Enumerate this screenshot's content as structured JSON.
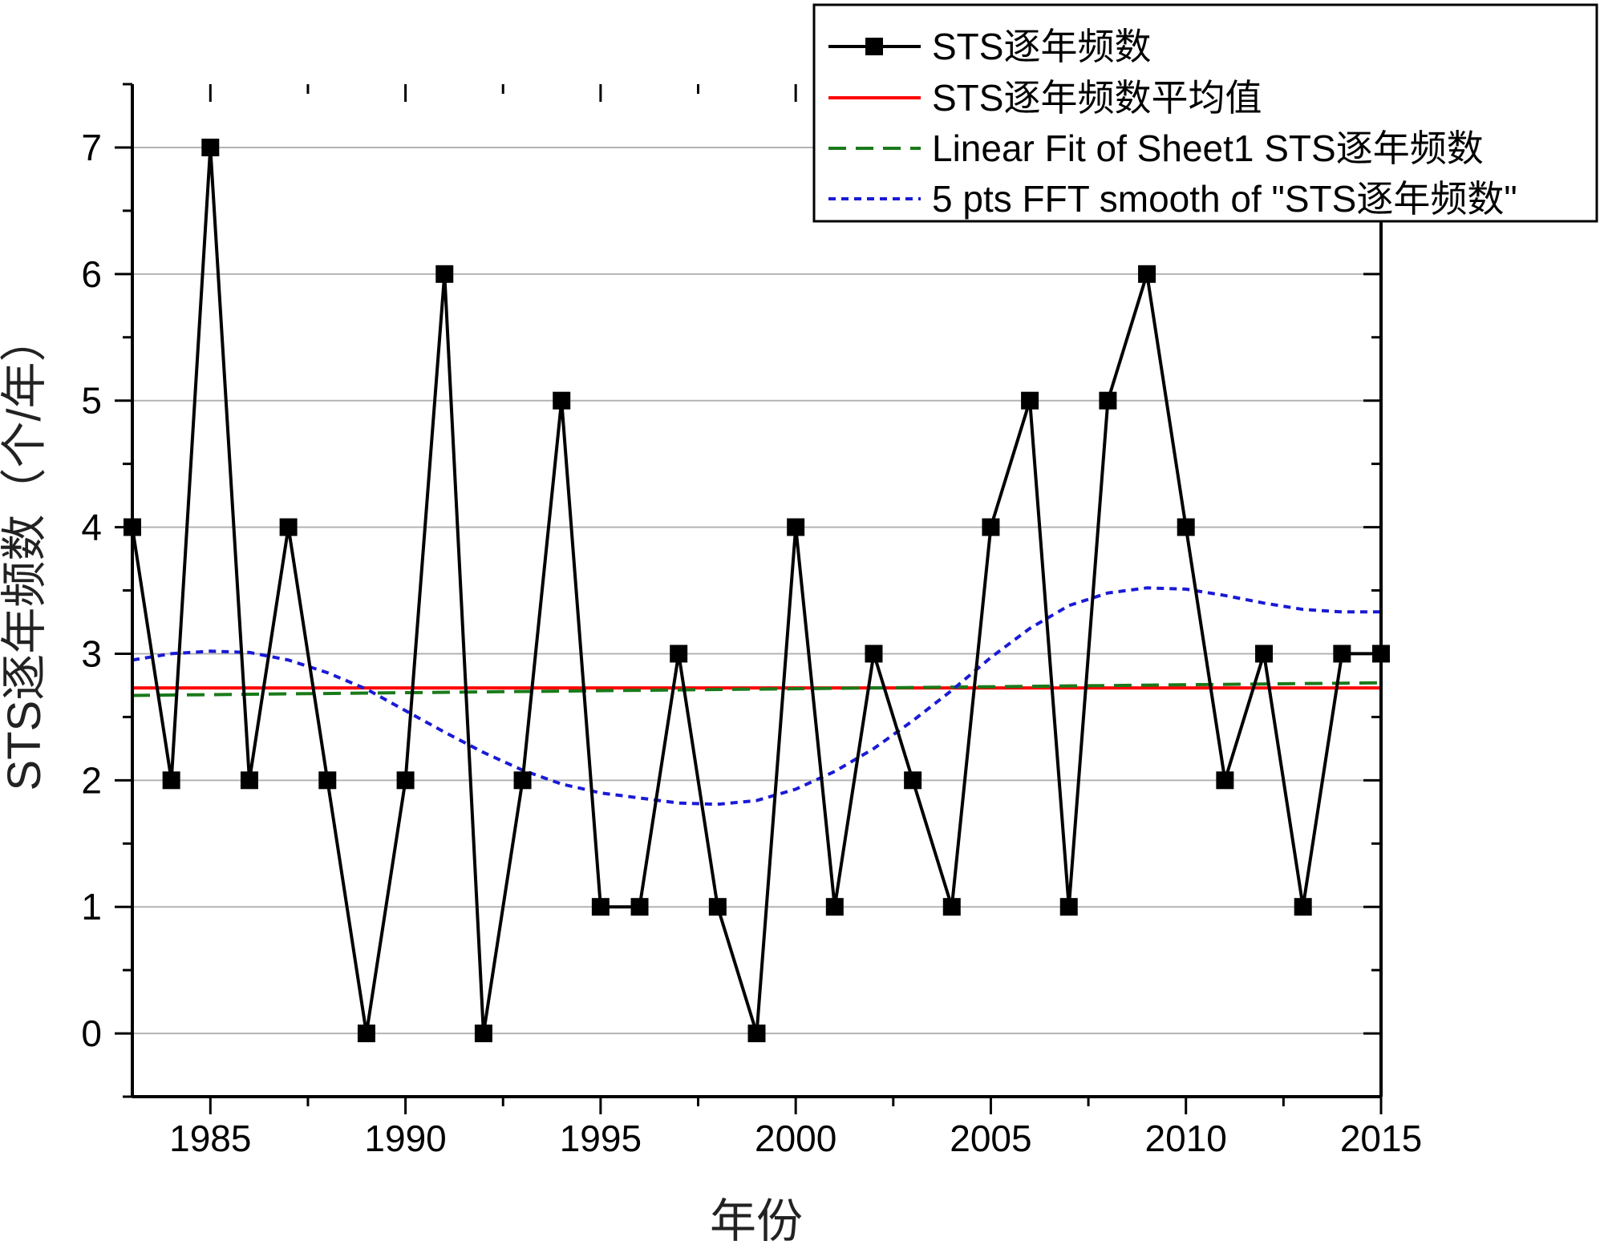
{
  "chart_data": {
    "type": "line",
    "xlabel": "年份",
    "ylabel": "STS逐年频数（个/年）",
    "xlim": [
      1983,
      2015
    ],
    "ylim": [
      -0.5,
      7.5
    ],
    "x_ticks": [
      1985,
      1990,
      1995,
      2000,
      2005,
      2010,
      2015
    ],
    "y_ticks": [
      0,
      1,
      2,
      3,
      4,
      5,
      6,
      7
    ],
    "grid": "horizontal",
    "legend_position": "top-right",
    "series": [
      {
        "name": "STS逐年频数",
        "style": "line-with-square-markers",
        "color": "#000000",
        "x": [
          1983,
          1984,
          1985,
          1986,
          1987,
          1988,
          1989,
          1990,
          1991,
          1992,
          1993,
          1994,
          1995,
          1996,
          1997,
          1998,
          1999,
          2000,
          2001,
          2002,
          2003,
          2004,
          2005,
          2006,
          2007,
          2008,
          2009,
          2010,
          2011,
          2012,
          2013,
          2014,
          2015
        ],
        "values": [
          4,
          2,
          7,
          2,
          4,
          2,
          0,
          2,
          6,
          0,
          2,
          5,
          1,
          1,
          3,
          1,
          0,
          4,
          1,
          3,
          2,
          1,
          4,
          5,
          1,
          5,
          6,
          4,
          2,
          3,
          1,
          3,
          3
        ]
      },
      {
        "name": "STS逐年频数平均值",
        "style": "solid",
        "color": "#ff0000",
        "x": [
          1983,
          2015
        ],
        "values": [
          2.73,
          2.73
        ]
      },
      {
        "name": "Linear Fit of Sheet1 STS逐年频数",
        "style": "dashed",
        "color": "#1a7a1a",
        "x": [
          1983,
          2015
        ],
        "values": [
          2.67,
          2.77
        ]
      },
      {
        "name": "5 pts FFT smooth of \"STS逐年频数\"",
        "style": "dotted",
        "color": "#1a1ad6",
        "x": [
          1983,
          1984,
          1985,
          1986,
          1987,
          1988,
          1989,
          1990,
          1991,
          1992,
          1993,
          1994,
          1995,
          1996,
          1997,
          1998,
          1999,
          2000,
          2001,
          2002,
          2003,
          2004,
          2005,
          2006,
          2007,
          2008,
          2009,
          2010,
          2011,
          2012,
          2013,
          2014,
          2015
        ],
        "values": [
          2.95,
          3.0,
          3.02,
          3.01,
          2.95,
          2.85,
          2.72,
          2.55,
          2.38,
          2.22,
          2.08,
          1.97,
          1.9,
          1.86,
          1.82,
          1.81,
          1.84,
          1.93,
          2.07,
          2.25,
          2.47,
          2.71,
          2.97,
          3.2,
          3.38,
          3.48,
          3.52,
          3.51,
          3.46,
          3.4,
          3.35,
          3.33,
          3.33
        ]
      }
    ]
  }
}
